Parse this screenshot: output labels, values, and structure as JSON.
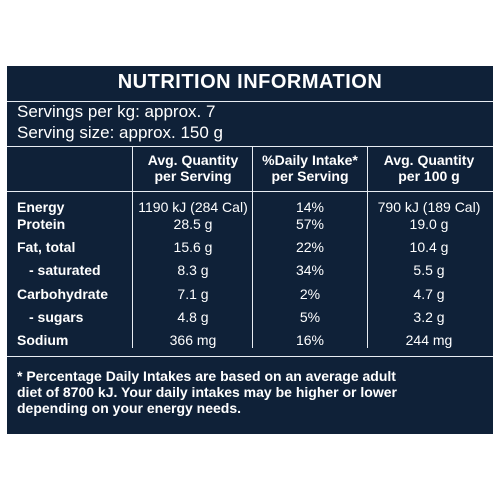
{
  "title": "NUTRITION INFORMATION",
  "servings_per_kg": "Servings per kg: approx. 7",
  "serving_size": "Serving size: approx. 150 g",
  "headers": {
    "col1": [
      "Avg. Quantity",
      "per Serving"
    ],
    "col2": [
      "%Daily Intake*",
      "per Serving"
    ],
    "col3": [
      "Avg. Quantity",
      "per 100 g"
    ]
  },
  "rows": [
    {
      "label": "Energy",
      "per_serving": "1190 kJ (284 Cal)",
      "daily": "14%",
      "per_100g": "790 kJ (189 Cal)"
    },
    {
      "label": "Protein",
      "per_serving": "28.5 g",
      "daily": "57%",
      "per_100g": "19.0 g"
    },
    {
      "label": "Fat, total",
      "per_serving": "15.6 g",
      "daily": "22%",
      "per_100g": "10.4 g"
    },
    {
      "label": "- saturated",
      "per_serving": "8.3 g",
      "daily": "34%",
      "per_100g": "5.5 g"
    },
    {
      "label": "Carbohydrate",
      "per_serving": "7.1 g",
      "daily": "2%",
      "per_100g": "4.7 g"
    },
    {
      "label": "- sugars",
      "per_serving": "4.8 g",
      "daily": "5%",
      "per_100g": "3.2 g"
    },
    {
      "label": "Sodium",
      "per_serving": "366 mg",
      "daily": "16%",
      "per_100g": "244 mg"
    }
  ],
  "footnote": [
    "* Percentage Daily Intakes are based on an average adult",
    "diet of 8700 kJ. Your daily intakes may be higher or lower",
    "depending on your energy needs."
  ],
  "colors": {
    "background": "#0f2138",
    "text": "#ffffff"
  }
}
